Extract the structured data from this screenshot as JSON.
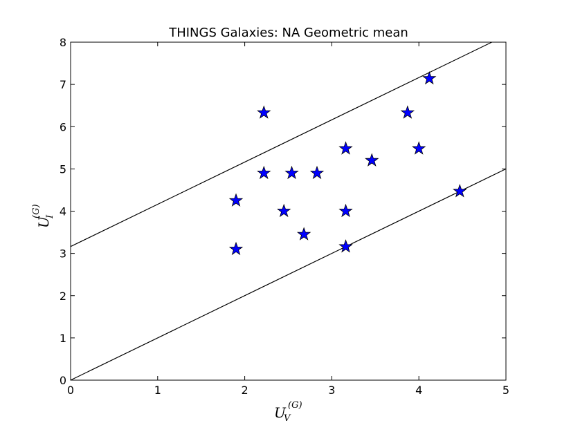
{
  "chart_data": {
    "type": "scatter",
    "title": "THINGS Galaxies: NA Geometric mean",
    "xlabel": {
      "base": "U",
      "sub": "V",
      "sup": "(G)"
    },
    "ylabel": {
      "base": "U",
      "sub": "I",
      "sup": "(G)"
    },
    "xlim": [
      0,
      5
    ],
    "ylim": [
      0,
      8
    ],
    "xticks": [
      "0",
      "1",
      "2",
      "3",
      "4",
      "5"
    ],
    "yticks": [
      "0",
      "1",
      "2",
      "3",
      "4",
      "5",
      "6",
      "7",
      "8"
    ],
    "grid": false,
    "marker": "star",
    "marker_color": "#0000ff",
    "marker_edge_color": "#000000",
    "points": [
      {
        "x": 1.9,
        "y": 4.25
      },
      {
        "x": 1.9,
        "y": 3.1
      },
      {
        "x": 2.22,
        "y": 6.33
      },
      {
        "x": 2.22,
        "y": 4.9
      },
      {
        "x": 2.45,
        "y": 4.0
      },
      {
        "x": 2.54,
        "y": 4.9
      },
      {
        "x": 2.68,
        "y": 3.45
      },
      {
        "x": 2.83,
        "y": 4.9
      },
      {
        "x": 3.16,
        "y": 5.48
      },
      {
        "x": 3.16,
        "y": 4.0
      },
      {
        "x": 3.16,
        "y": 3.16
      },
      {
        "x": 3.46,
        "y": 5.2
      },
      {
        "x": 3.87,
        "y": 6.33
      },
      {
        "x": 4.0,
        "y": 5.48
      },
      {
        "x": 4.12,
        "y": 7.14
      },
      {
        "x": 4.47,
        "y": 4.47
      }
    ],
    "lines": [
      {
        "slope": 1.0,
        "intercept": 3.162
      },
      {
        "slope": 1.0,
        "intercept": 0.0
      }
    ]
  }
}
